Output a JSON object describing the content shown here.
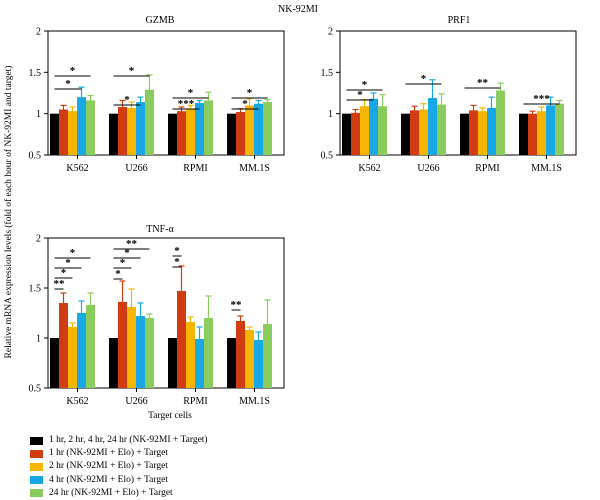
{
  "figure_title": "NK-92MI",
  "y_axis_label": "Relative mRNA expression levels (fold of each hour of NK-92MI and target)",
  "x_axis_label": "Target cells",
  "colors": [
    "#000000",
    "#d13c12",
    "#f6b500",
    "#18a8e6",
    "#8acd5e"
  ],
  "legend": [
    "1 hr, 2 hr, 4 hr, 24 hr (NK-92MI + Target)",
    "1 hr (NK-92MI + Elo) + Target",
    "2 hr (NK-92MI + Elo) + Target",
    "4 hr (NK-92MI + Elo) + Target",
    "24 hr (NK-92MI + Elo) + Target"
  ],
  "chart_data": [
    {
      "type": "bar",
      "title": "GZMB",
      "categories": [
        "K562",
        "U266",
        "RPMI",
        "MM.1S"
      ],
      "ylim": [
        0.5,
        2
      ],
      "yticks": [
        "0.5",
        "1",
        "1.5",
        "2"
      ],
      "series": [
        {
          "name": "1 hr, 2 hr, 4 hr, 24 hr (NK-92MI + Target)",
          "values": [
            1.0,
            1.0,
            1.0,
            1.0
          ],
          "errors": [
            0,
            0,
            0,
            0
          ]
        },
        {
          "name": "1 hr (NK-92MI + Elo) + Target",
          "values": [
            1.05,
            1.08,
            1.03,
            1.02
          ],
          "errors": [
            0.05,
            0.08,
            0.05,
            0.04
          ]
        },
        {
          "name": "2 hr (NK-92MI + Elo) + Target",
          "values": [
            1.03,
            1.07,
            1.05,
            1.1
          ],
          "errors": [
            0.05,
            0.07,
            0.05,
            0.08
          ]
        },
        {
          "name": "4 hr (NK-92MI + Elo) + Target",
          "values": [
            1.2,
            1.14,
            1.13,
            1.12
          ],
          "errors": [
            0.12,
            0.06,
            0.03,
            0.04
          ]
        },
        {
          "name": "24 hr (NK-92MI + Elo) + Target",
          "values": [
            1.16,
            1.29,
            1.16,
            1.14
          ],
          "errors": [
            0.06,
            0.18,
            0.1,
            0.03
          ]
        }
      ],
      "significance": [
        {
          "label": "*",
          "groups": [
            "K562",
            "K562"
          ]
        },
        {
          "label": "*",
          "groups": [
            "K562",
            "K562"
          ]
        },
        {
          "label": "*",
          "groups": [
            "U266",
            "U266"
          ]
        },
        {
          "label": "*",
          "groups": [
            "U266",
            "U266"
          ]
        },
        {
          "label": "*",
          "groups": [
            "RPMI",
            "RPMI"
          ]
        },
        {
          "label": "***",
          "groups": [
            "RPMI",
            "RPMI"
          ]
        },
        {
          "label": "*",
          "groups": [
            "MM.1S",
            "MM.1S"
          ]
        },
        {
          "label": "*",
          "groups": [
            "MM.1S",
            "MM.1S"
          ]
        }
      ]
    },
    {
      "type": "bar",
      "title": "PRF1",
      "categories": [
        "K562",
        "U266",
        "RPMI",
        "MM.1S"
      ],
      "ylim": [
        0.5,
        2
      ],
      "yticks": [
        "0.5",
        "1",
        "1.5",
        "2"
      ],
      "series": [
        {
          "name": "1 hr, 2 hr, 4 hr, 24 hr (NK-92MI + Target)",
          "values": [
            1.0,
            1.0,
            1.0,
            1.0
          ],
          "errors": [
            0,
            0,
            0,
            0
          ]
        },
        {
          "name": "1 hr (NK-92MI + Elo) + Target",
          "values": [
            1.01,
            1.04,
            1.04,
            1.0
          ],
          "errors": [
            0.04,
            0.05,
            0.06,
            0.03
          ]
        },
        {
          "name": "2 hr (NK-92MI + Elo) + Target",
          "values": [
            1.09,
            1.05,
            1.03,
            1.03
          ],
          "errors": [
            0.08,
            0.07,
            0.04,
            0.05
          ]
        },
        {
          "name": "4 hr (NK-92MI + Elo) + Target",
          "values": [
            1.18,
            1.19,
            1.07,
            1.1
          ],
          "errors": [
            0.07,
            0.22,
            0.13,
            0.1
          ]
        },
        {
          "name": "24 hr (NK-92MI + Elo) + Target",
          "values": [
            1.09,
            1.11,
            1.28,
            1.12
          ],
          "errors": [
            0.14,
            0.13,
            0.09,
            0.04
          ]
        }
      ],
      "significance": [
        {
          "label": "*",
          "groups": [
            "K562",
            "K562"
          ]
        },
        {
          "label": "*",
          "groups": [
            "K562",
            "K562"
          ]
        },
        {
          "label": "*",
          "groups": [
            "U266",
            "U266"
          ]
        },
        {
          "label": "**",
          "groups": [
            "RPMI",
            "RPMI"
          ]
        },
        {
          "label": "***",
          "groups": [
            "MM.1S",
            "MM.1S"
          ]
        }
      ]
    },
    {
      "type": "bar",
      "title": "TNF-α",
      "categories": [
        "K562",
        "U266",
        "RPMI",
        "MM.1S"
      ],
      "ylim": [
        0.5,
        2
      ],
      "yticks": [
        "0.5",
        "1",
        "1.5",
        "2"
      ],
      "series": [
        {
          "name": "1 hr, 2 hr, 4 hr, 24 hr (NK-92MI + Target)",
          "values": [
            1.0,
            1.0,
            1.0,
            1.0
          ],
          "errors": [
            0,
            0,
            0,
            0
          ]
        },
        {
          "name": "1 hr (NK-92MI + Elo) + Target",
          "values": [
            1.35,
            1.36,
            1.47,
            1.17
          ],
          "errors": [
            0.1,
            0.21,
            0.25,
            0.05
          ]
        },
        {
          "name": "2 hr (NK-92MI + Elo) + Target",
          "values": [
            1.11,
            1.31,
            1.16,
            1.08
          ],
          "errors": [
            0.04,
            0.18,
            0.05,
            0.03
          ]
        },
        {
          "name": "4 hr (NK-92MI + Elo) + Target",
          "values": [
            1.25,
            1.22,
            0.99,
            0.98
          ],
          "errors": [
            0.12,
            0.13,
            0.12,
            0.08
          ]
        },
        {
          "name": "24 hr (NK-92MI + Elo) + Target",
          "values": [
            1.33,
            1.2,
            1.2,
            1.14
          ],
          "errors": [
            0.12,
            0.04,
            0.22,
            0.24
          ]
        }
      ],
      "significance": [
        {
          "label": "*",
          "groups": [
            "K562",
            "K562"
          ]
        },
        {
          "label": "*",
          "groups": [
            "K562",
            "K562"
          ]
        },
        {
          "label": "*",
          "groups": [
            "K562",
            "K562"
          ]
        },
        {
          "label": "**",
          "groups": [
            "K562",
            "K562"
          ]
        },
        {
          "label": "**",
          "groups": [
            "U266",
            "U266"
          ]
        },
        {
          "label": "*",
          "groups": [
            "U266",
            "U266"
          ]
        },
        {
          "label": "*",
          "groups": [
            "U266",
            "U266"
          ]
        },
        {
          "label": "*",
          "groups": [
            "U266",
            "U266"
          ]
        },
        {
          "label": "*",
          "groups": [
            "RPMI",
            "RPMI"
          ]
        },
        {
          "label": "*",
          "groups": [
            "RPMI",
            "RPMI"
          ]
        },
        {
          "label": "**",
          "groups": [
            "MM.1S",
            "MM.1S"
          ]
        }
      ]
    }
  ]
}
